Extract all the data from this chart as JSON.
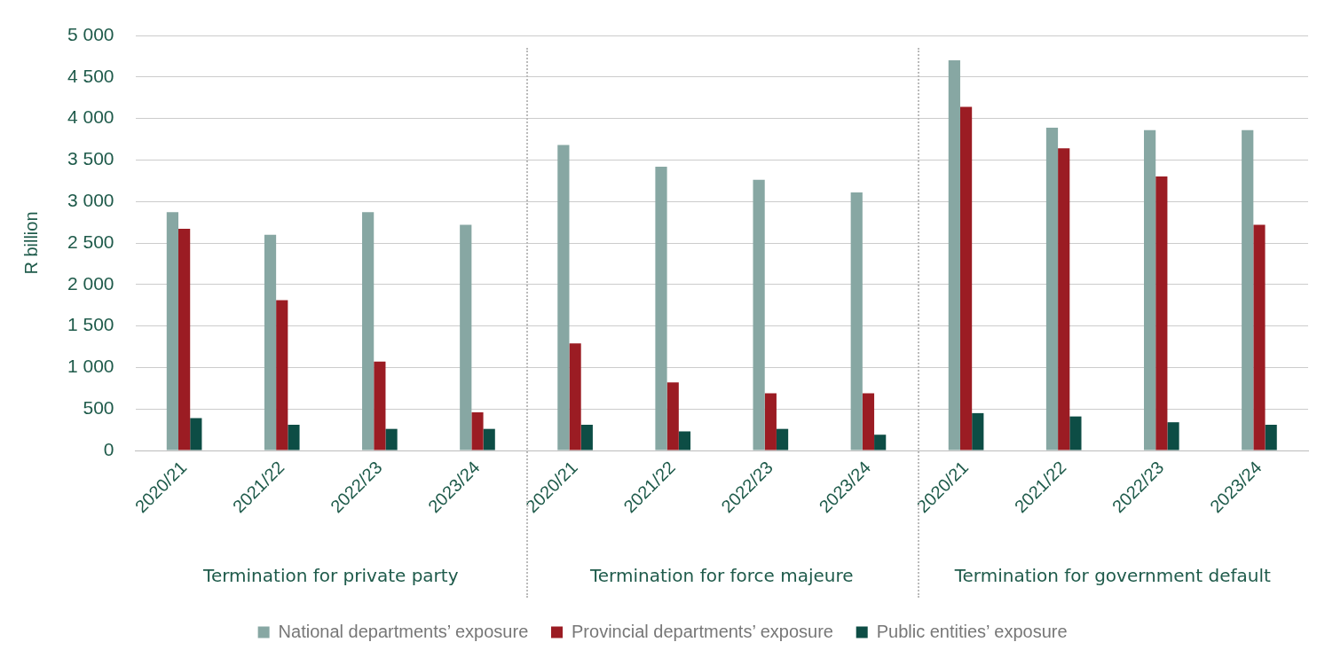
{
  "chart_data": {
    "type": "bar",
    "ylabel": "R billion",
    "categories": [
      "2020/21",
      "2021/22",
      "2022/23",
      "2023/24",
      "2020/21",
      "2021/22",
      "2022/23",
      "2023/24",
      "2020/21",
      "2021/22",
      "2022/23",
      "2023/24"
    ],
    "series": [
      {
        "name": "National departments’ exposure",
        "color": "#87a7a3",
        "values": [
          2870,
          2600,
          2870,
          2720,
          3680,
          3420,
          3260,
          3110,
          4700,
          3890,
          3860,
          3860
        ]
      },
      {
        "name": "Provincial departments’ exposure",
        "color": "#9b1c23",
        "values": [
          2670,
          1810,
          1070,
          460,
          1290,
          820,
          690,
          690,
          4140,
          3640,
          3300,
          2720
        ]
      },
      {
        "name": "Public entities’ exposure",
        "color": "#0d4d45",
        "values": [
          390,
          310,
          260,
          260,
          310,
          230,
          260,
          190,
          450,
          410,
          340,
          310
        ]
      }
    ],
    "ylim": [
      0,
      5000
    ],
    "yticks": [
      0,
      500,
      {
        "value": 1000,
        "label": "1 000"
      },
      {
        "value": 1500,
        "label": "1 500"
      },
      {
        "value": 2000,
        "label": "2 000"
      },
      {
        "value": 2500,
        "label": "2 500"
      },
      {
        "value": 3000,
        "label": "3 000"
      },
      {
        "value": 3500,
        "label": "3 500"
      },
      {
        "value": 4000,
        "label": "4 000"
      },
      {
        "value": 4500,
        "label": "4 500"
      },
      {
        "value": 5000,
        "label": "5 000"
      }
    ],
    "grid": "y",
    "legend": "bottom",
    "annotations": [
      "Termination for private party",
      "Termination for force majeure",
      "Termination for government default"
    ]
  }
}
